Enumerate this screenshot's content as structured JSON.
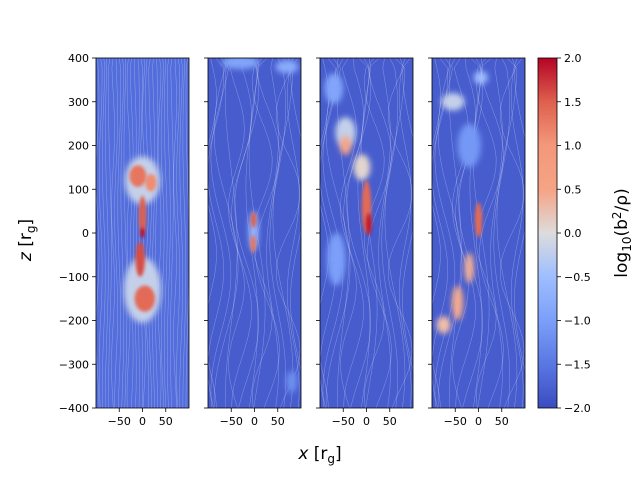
{
  "chart_data": {
    "type": "heatmap",
    "title": "",
    "xlabel": "x [r_g]",
    "ylabel": "z [r_g]",
    "xlabel_parts": {
      "var": "x",
      "unit": "[r",
      "sub": "g",
      "close": "]"
    },
    "ylabel_parts": {
      "var": "z",
      "unit": "[r",
      "sub": "g",
      "close": "]"
    },
    "colorbar_label": "log10(b^2/rho)",
    "colorbar_label_parts": {
      "pre": "log",
      "sub": "10",
      "mid": "(b",
      "sup": "2",
      "post": "/ρ)"
    },
    "colormap": "coolwarm",
    "xlim": [
      -100,
      100
    ],
    "ylim": [
      -400,
      400
    ],
    "clim": [
      -2.0,
      2.0
    ],
    "x_ticks": [
      -50,
      0,
      50
    ],
    "x_tick_labels": [
      "−50",
      "0",
      "50"
    ],
    "y_ticks": [
      400,
      300,
      200,
      100,
      0,
      -100,
      -200,
      -300,
      -400
    ],
    "y_tick_labels": [
      "400",
      "300",
      "200",
      "100",
      "0",
      "−100",
      "−200",
      "−300",
      "−400"
    ],
    "colorbar_ticks": [
      2.0,
      1.5,
      1.0,
      0.5,
      0.0,
      -0.5,
      -1.0,
      -1.5,
      -2.0
    ],
    "colorbar_tick_labels": [
      "2.0",
      "1.5",
      "1.0",
      "0.5",
      "0.0",
      "−0.5",
      "−1.0",
      "−1.5",
      "−2.0"
    ],
    "panels": [
      {
        "name": "panel-1",
        "background_value": -1.6,
        "blobs": [
          {
            "x": 0,
            "z": 120,
            "rx": 38,
            "rz": 55,
            "value": -0.2
          },
          {
            "x": 0,
            "z": -130,
            "rx": 40,
            "rz": 75,
            "value": -0.2
          },
          {
            "x": -10,
            "z": 130,
            "rx": 18,
            "rz": 25,
            "value": 1.3
          },
          {
            "x": 18,
            "z": 115,
            "rx": 12,
            "rz": 20,
            "value": 1.1
          },
          {
            "x": 0,
            "z": 40,
            "rx": 8,
            "rz": 45,
            "value": 1.5
          },
          {
            "x": -5,
            "z": -60,
            "rx": 10,
            "rz": 40,
            "value": 1.6
          },
          {
            "x": 5,
            "z": -150,
            "rx": 22,
            "rz": 30,
            "value": 1.4
          },
          {
            "x": 0,
            "z": 0,
            "rx": 4,
            "rz": 12,
            "value": 2.0
          }
        ]
      },
      {
        "name": "panel-2",
        "background_value": -1.8,
        "blobs": [
          {
            "x": -30,
            "z": 390,
            "rx": 40,
            "rz": 15,
            "value": -0.9
          },
          {
            "x": 70,
            "z": 380,
            "rx": 25,
            "rz": 15,
            "value": -0.8
          },
          {
            "x": -2,
            "z": 5,
            "rx": 10,
            "rz": 45,
            "value": -0.6
          },
          {
            "x": -2,
            "z": 30,
            "rx": 6,
            "rz": 18,
            "value": 1.5
          },
          {
            "x": -3,
            "z": -25,
            "rx": 6,
            "rz": 20,
            "value": 1.3
          },
          {
            "x": 80,
            "z": -340,
            "rx": 12,
            "rz": 25,
            "value": -1.2
          }
        ]
      },
      {
        "name": "panel-3",
        "background_value": -1.8,
        "blobs": [
          {
            "x": -70,
            "z": 330,
            "rx": 20,
            "rz": 35,
            "value": -0.9
          },
          {
            "x": -45,
            "z": 230,
            "rx": 22,
            "rz": 35,
            "value": -0.2
          },
          {
            "x": -10,
            "z": 150,
            "rx": 18,
            "rz": 30,
            "value": 0.1
          },
          {
            "x": 0,
            "z": 60,
            "rx": 10,
            "rz": 60,
            "value": 1.4
          },
          {
            "x": 5,
            "z": 20,
            "rx": 6,
            "rz": 25,
            "value": 1.9
          },
          {
            "x": -65,
            "z": -60,
            "rx": 20,
            "rz": 60,
            "value": -1.0
          },
          {
            "x": -45,
            "z": 200,
            "rx": 12,
            "rz": 22,
            "value": 0.8
          }
        ]
      },
      {
        "name": "panel-4",
        "background_value": -1.8,
        "blobs": [
          {
            "x": -55,
            "z": 300,
            "rx": 25,
            "rz": 20,
            "value": -0.2
          },
          {
            "x": -20,
            "z": 200,
            "rx": 25,
            "rz": 50,
            "value": -1.1
          },
          {
            "x": 5,
            "z": 355,
            "rx": 15,
            "rz": 15,
            "value": -0.5
          },
          {
            "x": 0,
            "z": 30,
            "rx": 8,
            "rz": 40,
            "value": 1.4
          },
          {
            "x": -20,
            "z": -80,
            "rx": 10,
            "rz": 35,
            "value": 0.6
          },
          {
            "x": -45,
            "z": -160,
            "rx": 12,
            "rz": 40,
            "value": 0.7
          },
          {
            "x": -75,
            "z": -210,
            "rx": 15,
            "rz": 20,
            "value": 0.4
          }
        ]
      }
    ]
  }
}
